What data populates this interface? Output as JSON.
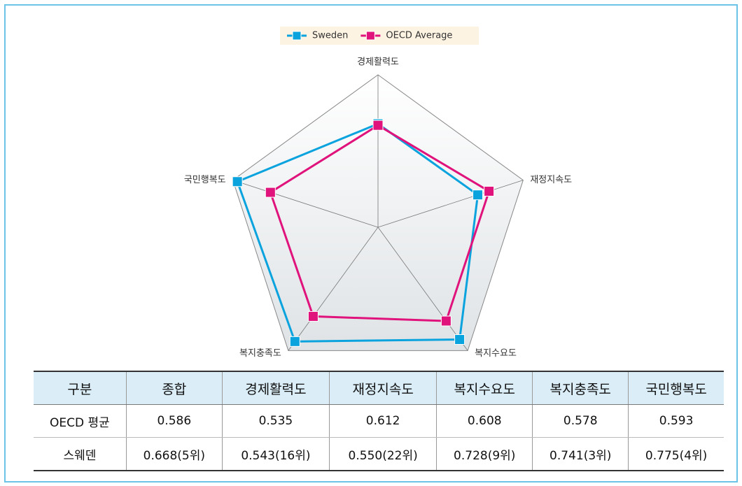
{
  "chart_data": {
    "type": "radar",
    "categories": [
      "경제활력도",
      "재정지속도",
      "복지수요도",
      "복지충족도",
      "국민행복도"
    ],
    "series": [
      {
        "name": "Sweden",
        "color": "#0aa3de",
        "values": [
          0.543,
          0.55,
          0.728,
          0.741,
          0.775
        ]
      },
      {
        "name": "OECD Average",
        "color": "#e0127c",
        "values": [
          0.535,
          0.612,
          0.608,
          0.578,
          0.593
        ]
      }
    ],
    "ylim": [
      0,
      0.8
    ],
    "legend": "top"
  },
  "table": {
    "header": [
      "구분",
      "종합",
      "경제활력도",
      "재정지속도",
      "복지수요도",
      "복지충족도",
      "국민행복도"
    ],
    "rows": [
      [
        "OECD 평균",
        "0.586",
        "0.535",
        "0.612",
        "0.608",
        "0.578",
        "0.593"
      ],
      [
        "스웨덴",
        "0.668(5위)",
        "0.543(16위)",
        "0.550(22위)",
        "0.728(9위)",
        "0.741(3위)",
        "0.775(4위)"
      ]
    ]
  }
}
